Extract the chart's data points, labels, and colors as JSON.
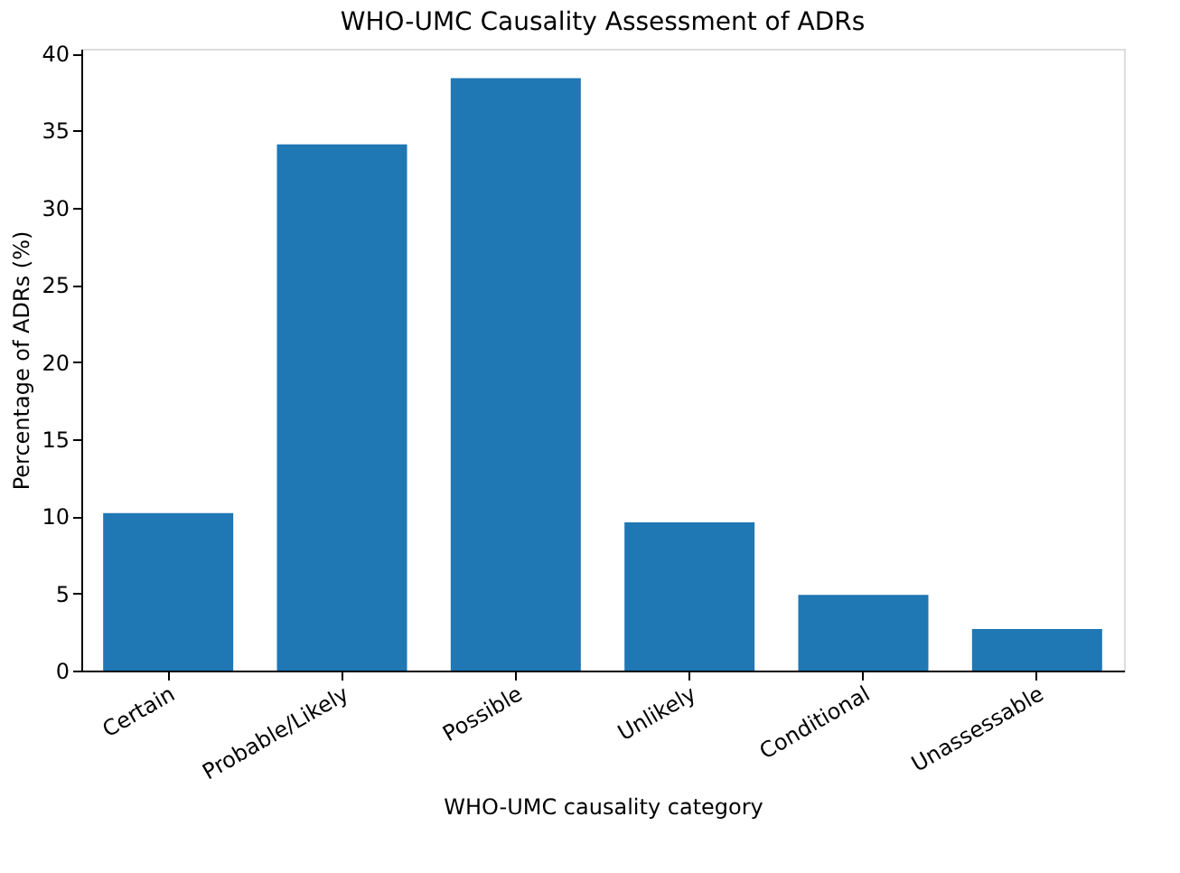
{
  "chart_data": {
    "type": "bar",
    "title": "WHO-UMC Causality Assessment of ADRs",
    "xlabel": "WHO-UMC causality category",
    "ylabel": "Percentage of ADRs (%)",
    "categories": [
      "Certain",
      "Probable/Likely",
      "Possible",
      "Unlikely",
      "Conditional",
      "Unassessable"
    ],
    "values": [
      10.2,
      34.1,
      38.4,
      9.6,
      4.9,
      2.7
    ],
    "color": "#1f77b4",
    "ylim": [
      0,
      40.3
    ],
    "yticks": [
      0,
      5,
      10,
      15,
      20,
      25,
      30,
      35,
      40
    ],
    "grid": false
  }
}
